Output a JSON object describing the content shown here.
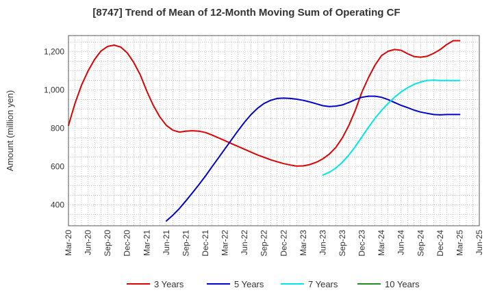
{
  "chart_data": {
    "type": "line",
    "title": "[8747]  Trend of Mean of 12-Month Moving Sum of Operating CF",
    "xlabel": "",
    "ylabel": "Amount (million yen)",
    "ylim": [
      290,
      1285
    ],
    "y_ticks": [
      400,
      600,
      800,
      1000,
      1200
    ],
    "y_tick_labels": [
      "400",
      "600",
      "800",
      "1,000",
      "1,200"
    ],
    "x_ticks": [
      "Mar-20",
      "Jun-20",
      "Sep-20",
      "Dec-20",
      "Mar-21",
      "Jun-21",
      "Sep-21",
      "Dec-21",
      "Mar-22",
      "Jun-22",
      "Sep-22",
      "Dec-22",
      "Mar-23",
      "Jun-23",
      "Sep-23",
      "Dec-23",
      "Mar-24",
      "Jun-24",
      "Sep-24",
      "Dec-24",
      "Mar-25",
      "Jun-25"
    ],
    "x_range_months": [
      0,
      63
    ],
    "grid": true,
    "legend_position": "bottom",
    "series": [
      {
        "name": "3 Years",
        "color": "#dd0000",
        "x": [
          0,
          1,
          2,
          3,
          4,
          5,
          6,
          7,
          8,
          9,
          10,
          11,
          12,
          13,
          14,
          15,
          16,
          17,
          18,
          19,
          20,
          21,
          22,
          23,
          24,
          25,
          26,
          27,
          28,
          29,
          30,
          31,
          32,
          33,
          34,
          35,
          36,
          37,
          38,
          39,
          40,
          41,
          42,
          43,
          44,
          45,
          46,
          47,
          48,
          49,
          50,
          51,
          52,
          53,
          54,
          55,
          56,
          57,
          58,
          59,
          60
        ],
        "values": [
          815,
          930,
          1025,
          1100,
          1160,
          1205,
          1228,
          1235,
          1225,
          1195,
          1145,
          1080,
          995,
          920,
          860,
          815,
          790,
          780,
          785,
          787,
          785,
          778,
          765,
          750,
          735,
          720,
          705,
          690,
          675,
          660,
          648,
          635,
          625,
          615,
          608,
          602,
          603,
          610,
          622,
          640,
          665,
          700,
          750,
          815,
          895,
          990,
          1065,
          1130,
          1180,
          1203,
          1212,
          1208,
          1190,
          1175,
          1172,
          1177,
          1192,
          1212,
          1238,
          1258,
          1258
        ]
      },
      {
        "name": "5 Years",
        "color": "#0000cc",
        "x": [
          15,
          16,
          17,
          18,
          19,
          20,
          21,
          22,
          23,
          24,
          25,
          26,
          27,
          28,
          29,
          30,
          31,
          32,
          33,
          34,
          35,
          36,
          37,
          38,
          39,
          40,
          41,
          42,
          43,
          44,
          45,
          46,
          47,
          48,
          49,
          50,
          51,
          52,
          53,
          54,
          55,
          56,
          57,
          58,
          59,
          60
        ],
        "values": [
          315,
          345,
          380,
          420,
          462,
          505,
          550,
          598,
          645,
          693,
          740,
          787,
          832,
          872,
          905,
          930,
          946,
          956,
          958,
          956,
          952,
          946,
          938,
          928,
          918,
          914,
          916,
          922,
          935,
          950,
          962,
          968,
          968,
          962,
          950,
          935,
          920,
          908,
          895,
          885,
          878,
          872,
          870,
          872,
          872,
          872
        ]
      },
      {
        "name": "7 Years",
        "color": "#00e5e5",
        "x": [
          39,
          40,
          41,
          42,
          43,
          44,
          45,
          46,
          47,
          48,
          49,
          50,
          51,
          52,
          53,
          54,
          55,
          56,
          57,
          58,
          59,
          60
        ],
        "values": [
          555,
          570,
          592,
          622,
          660,
          705,
          755,
          805,
          852,
          893,
          930,
          962,
          990,
          1012,
          1030,
          1042,
          1050,
          1052,
          1050,
          1050,
          1050,
          1050
        ]
      },
      {
        "name": "10 Years",
        "color": "#228b22",
        "x": [],
        "values": []
      }
    ]
  }
}
